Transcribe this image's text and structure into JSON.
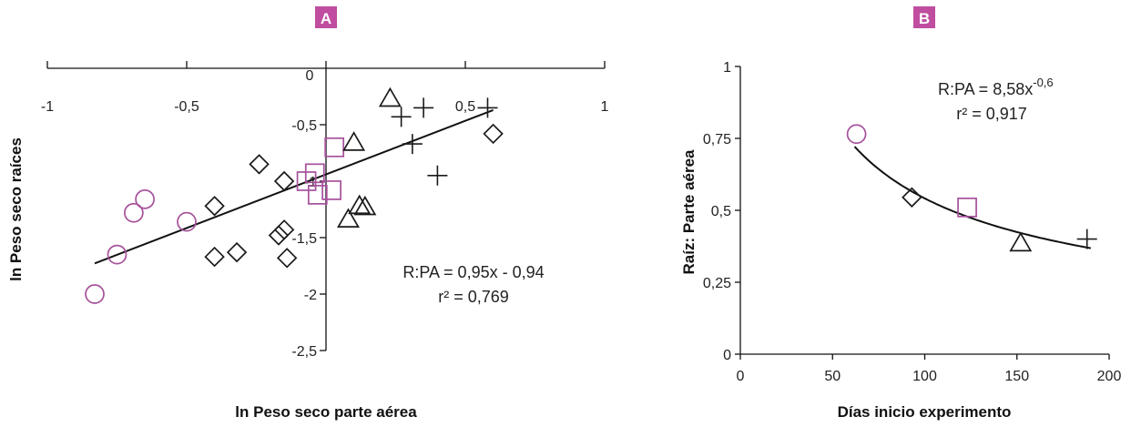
{
  "colors": {
    "accent": "#a6519b",
    "ink": "#1a1a1a",
    "label_fill": "#c04da0"
  },
  "chart_data": [
    {
      "panel": "A",
      "type": "scatter",
      "xlabel": "ln Peso seco parte aérea",
      "ylabel": "ln Peso seco raíces",
      "xlim": [
        -1,
        1
      ],
      "ylim": [
        -2.5,
        0
      ],
      "xticks": [
        "-1",
        "-0,5",
        "0",
        "0,5",
        "1"
      ],
      "yticks": [
        "-0,5",
        "-1",
        "-1,5",
        "-2",
        "-2,5"
      ],
      "origin_label": "0",
      "equation": "R:PA = 0,95x - 0,94",
      "r2": "r² = 0,769",
      "fit": {
        "slope": 0.95,
        "intercept": -0.94,
        "x_range": [
          -0.83,
          0.6
        ]
      },
      "series": [
        {
          "marker": "circle",
          "color": "#a6519b",
          "points": [
            [
              -0.83,
              -2.0
            ],
            [
              -0.75,
              -1.65
            ],
            [
              -0.69,
              -1.28
            ],
            [
              -0.65,
              -1.16
            ],
            [
              -0.5,
              -1.36
            ]
          ]
        },
        {
          "marker": "diamond",
          "color": "#1a1a1a",
          "points": [
            [
              -0.4,
              -1.22
            ],
            [
              -0.4,
              -1.67
            ],
            [
              -0.32,
              -1.63
            ],
            [
              -0.24,
              -0.85
            ],
            [
              -0.17,
              -1.48
            ],
            [
              -0.15,
              -1.43
            ],
            [
              -0.14,
              -1.68
            ],
            [
              -0.15,
              -1.0
            ],
            [
              0.6,
              -0.58
            ]
          ]
        },
        {
          "marker": "square",
          "color": "#a6519b",
          "points": [
            [
              -0.07,
              -1.0
            ],
            [
              -0.04,
              -0.93
            ],
            [
              0.03,
              -0.7
            ],
            [
              0.02,
              -1.08
            ],
            [
              -0.03,
              -1.12
            ]
          ]
        },
        {
          "marker": "triangle",
          "color": "#1a1a1a",
          "points": [
            [
              0.1,
              -0.66
            ],
            [
              0.12,
              -1.22
            ],
            [
              0.14,
              -1.23
            ],
            [
              0.08,
              -1.34
            ],
            [
              0.23,
              -0.27
            ]
          ]
        },
        {
          "marker": "plus",
          "color": "#1a1a1a",
          "points": [
            [
              0.27,
              -0.43
            ],
            [
              0.35,
              -0.35
            ],
            [
              0.31,
              -0.67
            ],
            [
              0.4,
              -0.95
            ],
            [
              0.58,
              -0.35
            ]
          ]
        }
      ]
    },
    {
      "panel": "B",
      "type": "scatter",
      "xlabel": "Días inicio experimento",
      "ylabel": "Raíz: Parte aérea",
      "xlim": [
        0,
        200
      ],
      "ylim": [
        0,
        1
      ],
      "xticks": [
        "0",
        "50",
        "100",
        "150",
        "200"
      ],
      "yticks": [
        "0",
        "0,25",
        "0,5",
        "0,75",
        "1"
      ],
      "equation_base": "R:PA = 8,58x",
      "equation_exp": "-0,6",
      "r2": "r² = 0,917",
      "fit": {
        "coef": 8.58,
        "exp": -0.6,
        "x_range": [
          62,
          190
        ]
      },
      "series": [
        {
          "marker": "circle",
          "color": "#a6519b",
          "points": [
            [
              63,
              0.765
            ]
          ]
        },
        {
          "marker": "diamond",
          "color": "#1a1a1a",
          "points": [
            [
              93,
              0.545
            ]
          ]
        },
        {
          "marker": "square",
          "color": "#a6519b",
          "points": [
            [
              123,
              0.51
            ]
          ]
        },
        {
          "marker": "triangle",
          "color": "#1a1a1a",
          "points": [
            [
              152,
              0.385
            ]
          ]
        },
        {
          "marker": "plus",
          "color": "#1a1a1a",
          "points": [
            [
              188,
              0.4
            ]
          ]
        }
      ]
    }
  ]
}
